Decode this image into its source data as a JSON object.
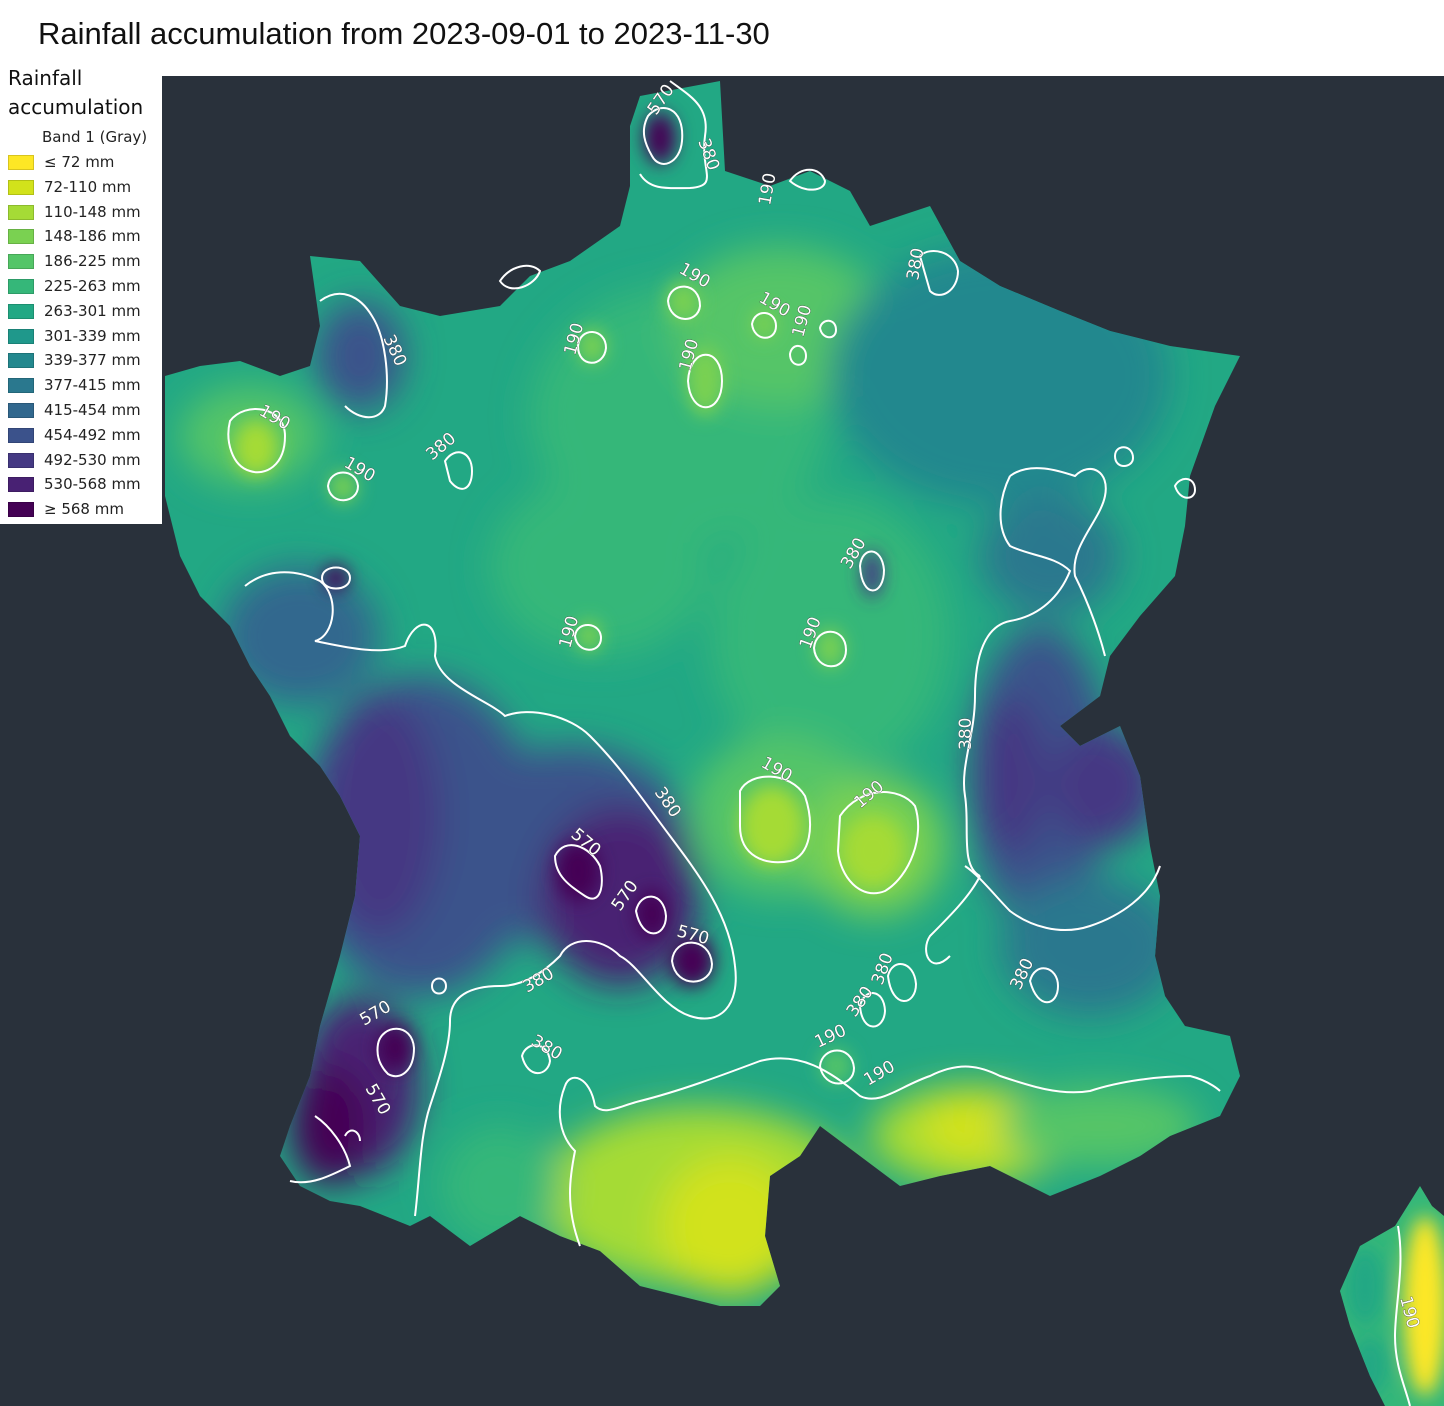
{
  "title": "Rainfall accumulation from 2023-09-01 to 2023-11-30",
  "legend": {
    "title": "Rainfall accumulation",
    "band_label": "Band 1 (Gray)",
    "items": [
      {
        "label": "≤ 72 mm",
        "color": "#fde725"
      },
      {
        "label": "72-110 mm",
        "color": "#d2e21b"
      },
      {
        "label": "110-148 mm",
        "color": "#a5db36"
      },
      {
        "label": "148-186 mm",
        "color": "#7ad151"
      },
      {
        "label": "186-225 mm",
        "color": "#54c568"
      },
      {
        "label": "225-263 mm",
        "color": "#35b779"
      },
      {
        "label": "263-301 mm",
        "color": "#22a884"
      },
      {
        "label": "301-339 mm",
        "color": "#1f988b"
      },
      {
        "label": "339-377 mm",
        "color": "#23888e"
      },
      {
        "label": "377-415 mm",
        "color": "#2a788e"
      },
      {
        "label": "415-454 mm",
        "color": "#31688e"
      },
      {
        "label": "454-492 mm",
        "color": "#3b528b"
      },
      {
        "label": "492-530 mm",
        "color": "#443983"
      },
      {
        "label": "530-568 mm",
        "color": "#482173"
      },
      {
        "label": "≥ 568 mm",
        "color": "#440154"
      }
    ]
  },
  "map": {
    "background_color": "#29313b",
    "contour_color": "#ffffff",
    "contour_levels": [
      "190",
      "380",
      "570"
    ]
  }
}
